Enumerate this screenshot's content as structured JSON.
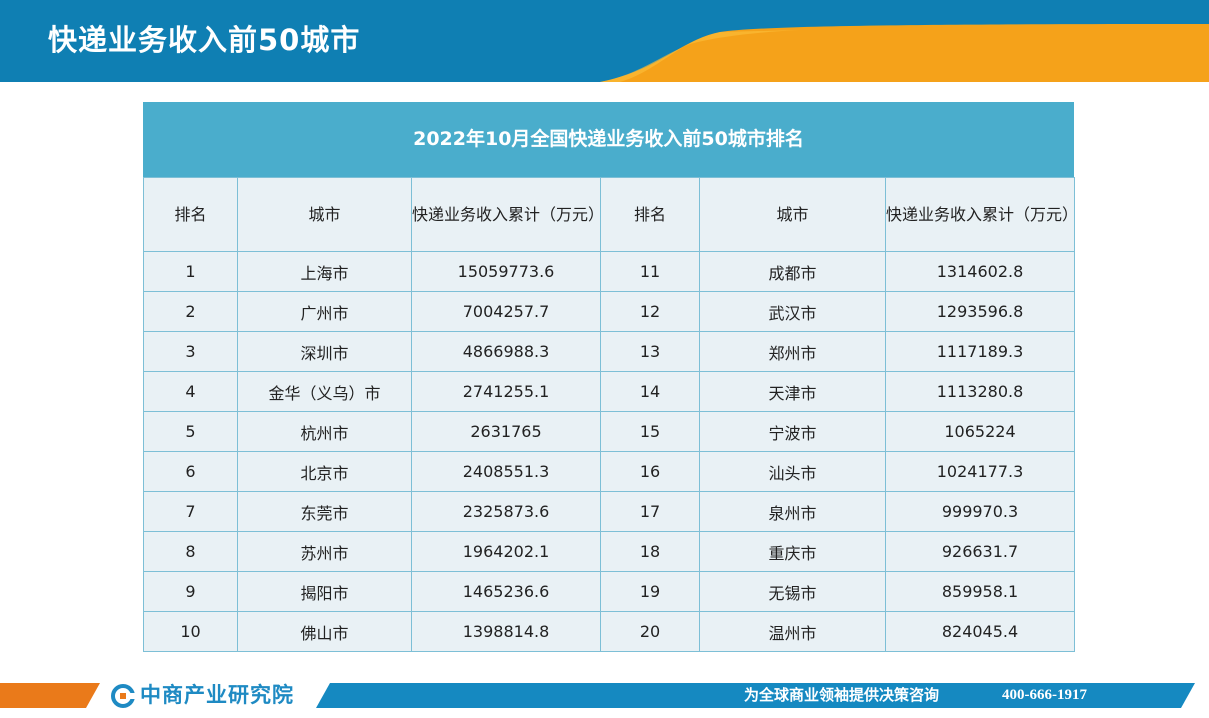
{
  "header": {
    "title": "快递业务收入前50城市"
  },
  "table": {
    "caption": "2022年10月全国快递业务收入前50城市排名",
    "columns": [
      "排名",
      "城市",
      "快递业务收入累计（万元）",
      "排名",
      "城市",
      "快递业务收入累计（万元）"
    ],
    "rows": [
      [
        "1",
        "上海市",
        "15059773.6",
        "11",
        "成都市",
        "1314602.8"
      ],
      [
        "2",
        "广州市",
        "7004257.7",
        "12",
        "武汉市",
        "1293596.8"
      ],
      [
        "3",
        "深圳市",
        "4866988.3",
        "13",
        "郑州市",
        "1117189.3"
      ],
      [
        "4",
        "金华（义乌）市",
        "2741255.1",
        "14",
        "天津市",
        "1113280.8"
      ],
      [
        "5",
        "杭州市",
        "2631765",
        "15",
        "宁波市",
        "1065224"
      ],
      [
        "6",
        "北京市",
        "2408551.3",
        "16",
        "汕头市",
        "1024177.3"
      ],
      [
        "7",
        "东莞市",
        "2325873.6",
        "17",
        "泉州市",
        "999970.3"
      ],
      [
        "8",
        "苏州市",
        "1964202.1",
        "18",
        "重庆市",
        "926631.7"
      ],
      [
        "9",
        "揭阳市",
        "1465236.6",
        "19",
        "无锡市",
        "859958.1"
      ],
      [
        "10",
        "佛山市",
        "1398814.8",
        "20",
        "温州市",
        "824045.4"
      ]
    ]
  },
  "footer": {
    "logo_text": "中商产业研究院",
    "logo_icon": "chinese-brand-c-icon",
    "slogan": "为全球商业领袖提供决策咨询",
    "phone": "400-666-1917"
  },
  "colors": {
    "header_blue": "#0f7fb3",
    "header_orange": "#f5a21a",
    "caption_blue": "#4aadcc",
    "table_bg": "#e9f1f5",
    "footer_orange": "#ea7a1a",
    "logo_blue": "#1e8ac3"
  }
}
